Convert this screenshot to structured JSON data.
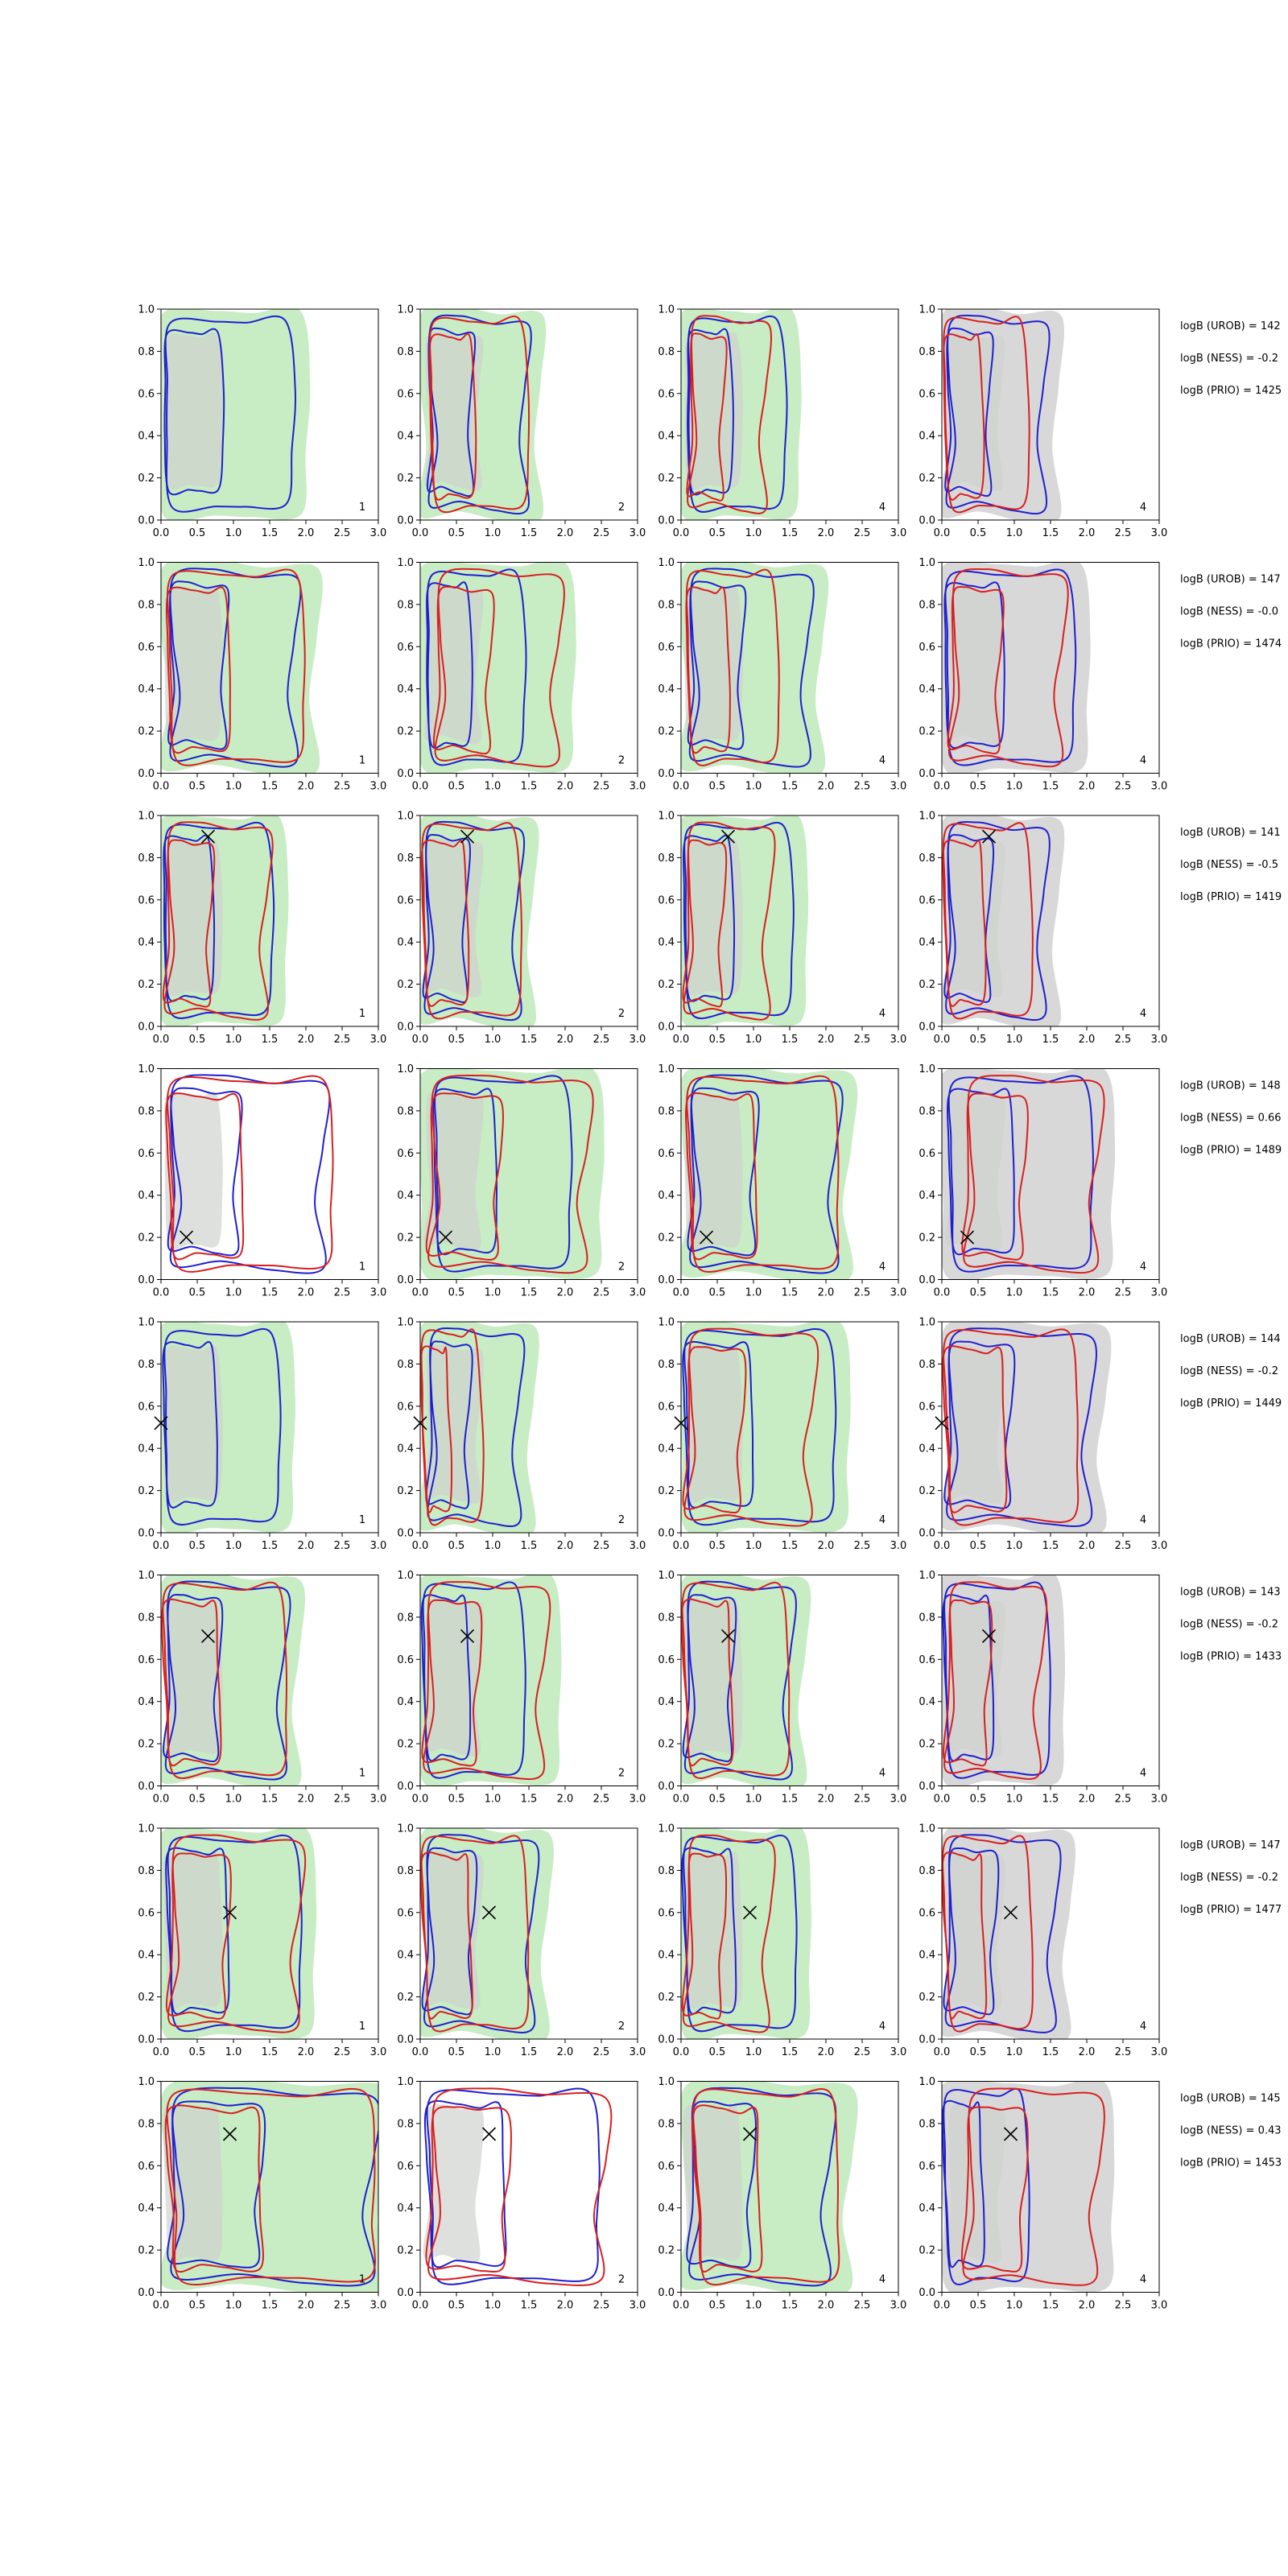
{
  "figure": {
    "panel_numbers": [
      "1",
      "2",
      "4",
      "4"
    ],
    "axes": {
      "xlim": [
        0,
        3.0
      ],
      "ylim": [
        0,
        1.0
      ],
      "xticks": [
        "0.0",
        "0.5",
        "1.0",
        "1.5",
        "2.0",
        "2.5",
        "3.0"
      ],
      "yticks": [
        "0.0",
        "0.2",
        "0.4",
        "0.6",
        "0.8",
        "1.0"
      ]
    },
    "colors": {
      "green_fill": "#c8ecc4",
      "grey_fill": "#d8d8d8",
      "blue_line": "#1f1fd0",
      "red_line": "#d81f1f",
      "marker": "#000000"
    }
  },
  "chart_data": {
    "type": "contour",
    "rows": [
      {
        "marker": null,
        "annotations": [
          "logB (UROB) = 142",
          "logB (NESS) = -0.2",
          "logB (PRIO) = 1425"
        ],
        "panels": [
          {
            "fill": "green",
            "blue": [
              0.05,
              1.85
            ],
            "red": null
          },
          {
            "fill": "green",
            "blue": [
              0.1,
              1.5
            ],
            "red": [
              0.15,
              1.5
            ]
          },
          {
            "fill": "green",
            "blue": [
              0.1,
              1.45
            ],
            "red": [
              0.1,
              1.2
            ]
          },
          {
            "fill": "grey",
            "blue": [
              0.05,
              1.45
            ],
            "red": [
              0.05,
              1.2
            ]
          }
        ]
      },
      {
        "marker": null,
        "annotations": [
          "logB (UROB) = 147",
          "logB (NESS) = -0.0",
          "logB (PRIO) = 1474"
        ],
        "panels": [
          {
            "fill": "green",
            "blue": [
              0.1,
              1.9
            ],
            "red": [
              0.1,
              2.0
            ]
          },
          {
            "fill": "green",
            "blue": [
              0.1,
              1.45
            ],
            "red": [
              0.2,
              1.95
            ]
          },
          {
            "fill": "green",
            "blue": [
              0.1,
              1.8
            ],
            "red": [
              0.1,
              1.35
            ]
          },
          {
            "fill": "grey",
            "blue": [
              0.05,
              1.85
            ],
            "red": [
              0.1,
              1.7
            ]
          }
        ]
      },
      {
        "marker": [
          0.65,
          0.9
        ],
        "annotations": [
          "logB (UROB) = 141",
          "logB (NESS) = -0.5",
          "logB (PRIO) = 1419"
        ],
        "panels": [
          {
            "fill": "green",
            "blue": [
              0.05,
              1.55
            ],
            "red": [
              0.05,
              1.5
            ]
          },
          {
            "fill": "green",
            "blue": [
              0.05,
              1.4
            ],
            "red": [
              0.05,
              1.4
            ]
          },
          {
            "fill": "green",
            "blue": [
              0.05,
              1.55
            ],
            "red": [
              0.05,
              1.25
            ]
          },
          {
            "fill": "grey",
            "blue": [
              0.05,
              1.45
            ],
            "red": [
              0.05,
              1.25
            ]
          }
        ]
      },
      {
        "marker": [
          0.35,
          0.2
        ],
        "annotations": [
          "logB (UROB) = 148",
          "logB (NESS) = 0.66",
          "logB (PRIO) = 1489"
        ],
        "panels": [
          {
            "fill": "none",
            "blue": [
              0.1,
              2.3
            ],
            "red": [
              0.1,
              2.4
            ]
          },
          {
            "fill": "green",
            "blue": [
              0.2,
              2.1
            ],
            "red": [
              0.1,
              2.35
            ]
          },
          {
            "fill": "green",
            "blue": [
              0.1,
              2.2
            ],
            "red": [
              0.1,
              2.2
            ]
          },
          {
            "fill": "grey",
            "blue": [
              0.1,
              2.1
            ],
            "red": [
              0.3,
              2.2
            ]
          }
        ]
      },
      {
        "marker": [
          0.0,
          0.52
        ],
        "annotations": [
          "logB (UROB) = 144",
          "logB (NESS) = -0.2",
          "logB (PRIO) = 1449"
        ],
        "panels": [
          {
            "fill": "green",
            "blue": [
              0.05,
              1.65
            ],
            "red": null
          },
          {
            "fill": "green",
            "blue": [
              0.1,
              1.4
            ],
            "red": [
              0.05,
              0.85
            ]
          },
          {
            "fill": "green",
            "blue": [
              0.05,
              2.15
            ],
            "red": [
              0.05,
              1.85
            ]
          },
          {
            "fill": "grey",
            "blue": [
              0.05,
              2.1
            ],
            "red": [
              0.05,
              1.9
            ]
          }
        ]
      },
      {
        "marker": [
          0.65,
          0.71
        ],
        "annotations": [
          "logB (UROB) = 143",
          "logB (NESS) = -0.2",
          "logB (PRIO) = 1433"
        ],
        "panels": [
          {
            "fill": "green",
            "blue": [
              0.05,
              1.75
            ],
            "red": [
              0.05,
              1.75
            ]
          },
          {
            "fill": "green",
            "blue": [
              0.05,
              1.45
            ],
            "red": [
              0.05,
              1.75
            ]
          },
          {
            "fill": "green",
            "blue": [
              0.05,
              1.55
            ],
            "red": [
              0.05,
              1.5
            ]
          },
          {
            "fill": "grey",
            "blue": [
              0.05,
              1.5
            ],
            "red": [
              0.05,
              1.4
            ]
          }
        ]
      },
      {
        "marker": [
          0.95,
          0.6
        ],
        "annotations": [
          "logB (UROB) = 147",
          "logB (NESS) = -0.2",
          "logB (PRIO) = 1477"
        ],
        "panels": [
          {
            "fill": "green",
            "blue": [
              0.1,
              1.95
            ],
            "red": [
              0.1,
              1.95
            ]
          },
          {
            "fill": "green",
            "blue": [
              0.05,
              1.6
            ],
            "red": [
              0.05,
              1.5
            ]
          },
          {
            "fill": "green",
            "blue": [
              0.05,
              1.6
            ],
            "red": [
              0.05,
              1.25
            ]
          },
          {
            "fill": "grey",
            "blue": [
              0.05,
              1.6
            ],
            "red": [
              0.05,
              1.25
            ]
          }
        ]
      },
      {
        "marker": [
          0.95,
          0.75
        ],
        "annotations": [
          "logB (UROB) = 145",
          "logB (NESS) = 0.43",
          "logB (PRIO) = 1453"
        ],
        "panels": [
          {
            "fill": "green",
            "blue": [
              0.1,
              3.0
            ],
            "red": [
              0.1,
              3.0
            ]
          },
          {
            "fill": "none",
            "blue": [
              0.1,
              2.5
            ],
            "red": [
              0.1,
              2.6
            ]
          },
          {
            "fill": "green",
            "blue": [
              0.1,
              2.1
            ],
            "red": [
              0.2,
              2.2
            ]
          },
          {
            "fill": "grey",
            "blue": [
              0.05,
              1.2
            ],
            "red": [
              0.3,
              2.2
            ]
          }
        ]
      }
    ]
  }
}
